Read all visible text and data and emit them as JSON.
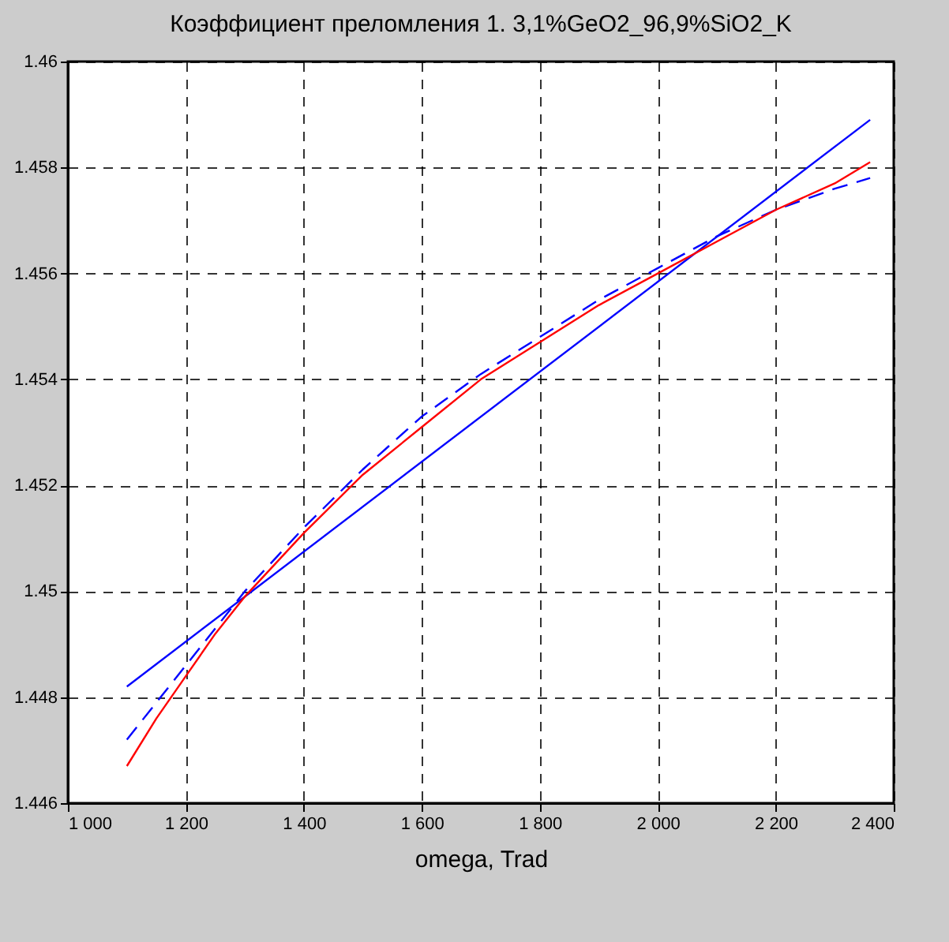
{
  "chart_data": {
    "type": "line",
    "title": "Коэффициент преломления  1. 3,1%GeO2_96,9%SiO2_K",
    "xlabel": "omega, Trad",
    "xlim": [
      1000,
      2400
    ],
    "ylim": [
      1.446,
      1.46
    ],
    "xticks": [
      {
        "value": 1000,
        "label": "1 000"
      },
      {
        "value": 1200,
        "label": "1 200"
      },
      {
        "value": 1400,
        "label": "1 400"
      },
      {
        "value": 1600,
        "label": "1 600"
      },
      {
        "value": 1800,
        "label": "1 800"
      },
      {
        "value": 2000,
        "label": "2 000"
      },
      {
        "value": 2200,
        "label": "2 200"
      },
      {
        "value": 2400,
        "label": "2 400"
      }
    ],
    "yticks": [
      1.446,
      1.448,
      1.45,
      1.452,
      1.454,
      1.456,
      1.458,
      1.46
    ],
    "grid": true,
    "marker": "none",
    "series": [
      {
        "color": "#0000ff",
        "line_style": "solid",
        "x": [
          1100,
          2360
        ],
        "values": [
          1.4482,
          1.4589
        ]
      },
      {
        "color": "#0000ff",
        "line_style": "dashed",
        "x": [
          1100,
          1200,
          1300,
          1400,
          1500,
          1600,
          1700,
          1800,
          1900,
          2000,
          2100,
          2200,
          2300,
          2360
        ],
        "values": [
          1.4472,
          1.4486,
          1.45,
          1.4512,
          1.4523,
          1.4533,
          1.4541,
          1.4548,
          1.4555,
          1.4561,
          1.4567,
          1.4572,
          1.4576,
          1.4578
        ]
      },
      {
        "color": "#ff0000",
        "line_style": "solid",
        "x": [
          1100,
          1150,
          1200,
          1250,
          1300,
          1400,
          1500,
          1600,
          1700,
          1800,
          1900,
          2000,
          2100,
          2200,
          2300,
          2360
        ],
        "values": [
          1.4467,
          1.4476,
          1.4484,
          1.4492,
          1.4499,
          1.4511,
          1.4522,
          1.4531,
          1.454,
          1.4547,
          1.4554,
          1.456,
          1.4566,
          1.4572,
          1.4577,
          1.4581
        ]
      }
    ]
  }
}
